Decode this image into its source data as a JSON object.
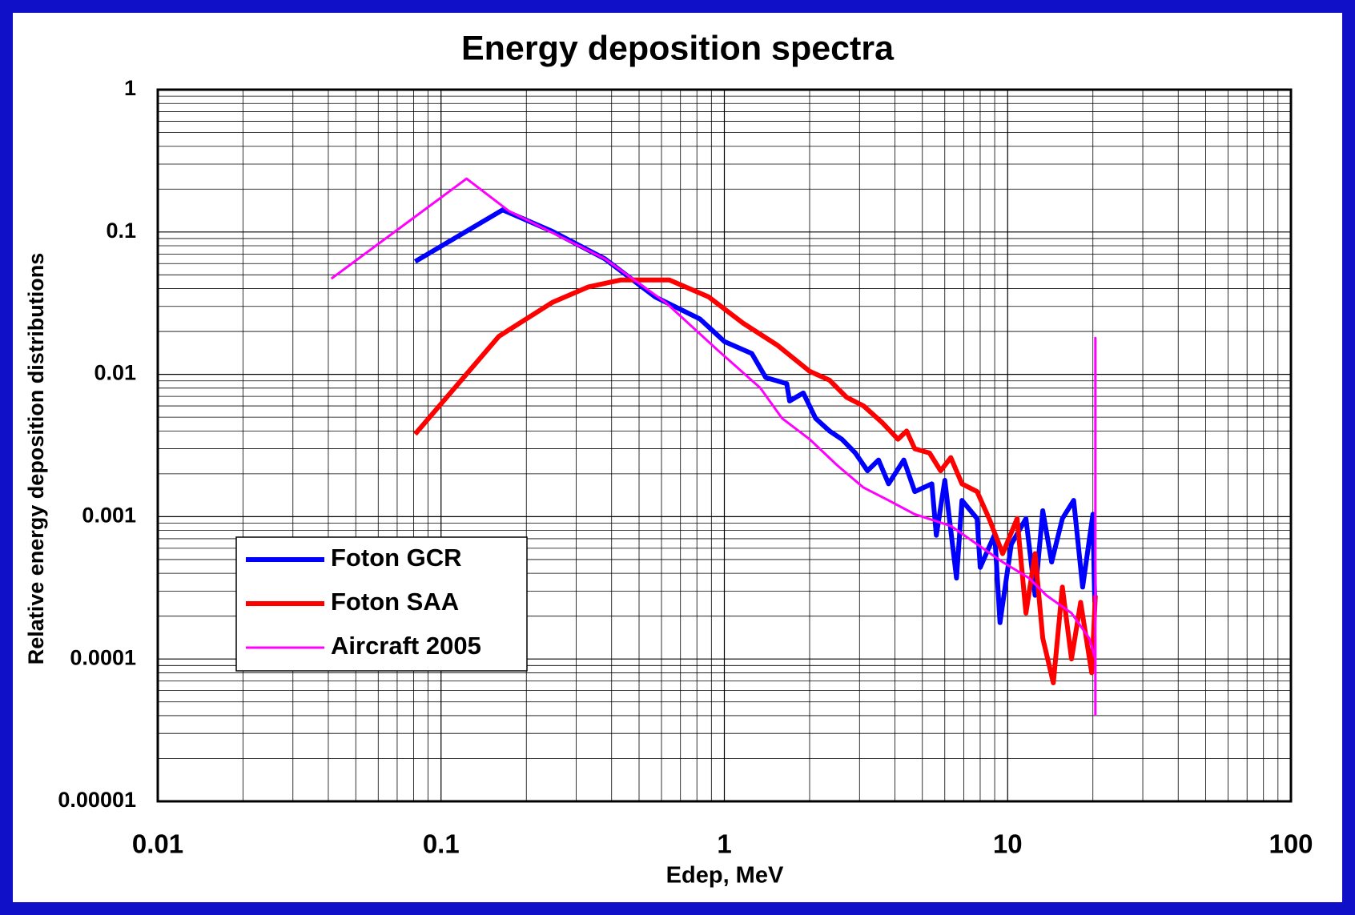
{
  "chart_data": {
    "type": "line",
    "title": "Energy deposition spectra",
    "x_label": "Edep, MeV",
    "y_label": "Relative energy deposition distributions",
    "xscale": "log",
    "yscale": "log",
    "grid": true,
    "legend": "lower left",
    "xlim": [
      0.01,
      100
    ],
    "xticks": [
      0.01,
      0.1,
      1,
      10,
      100
    ],
    "ylim": [
      1e-05,
      1
    ],
    "yticks": [
      1e-05,
      0.0001,
      0.001,
      0.01,
      0.1,
      1
    ],
    "series": [
      {
        "name": "Foton GCR",
        "color": "#0000ff",
        "width": 6,
        "x": [
          0.081,
          0.165,
          0.247,
          0.378,
          0.57,
          0.82,
          1.0,
          1.25,
          1.4,
          1.66,
          1.7,
          1.9,
          2.1,
          2.35,
          2.6,
          2.9,
          3.2,
          3.5,
          3.8,
          4.3,
          4.7,
          5.4,
          5.6,
          6.0,
          6.6,
          6.9,
          7.8,
          8.0,
          9.0,
          9.4,
          10.3,
          11.6,
          12.5,
          13.3,
          14.3,
          15.6,
          17.1,
          18.4,
          20,
          20.3
        ],
        "values": [
          0.062,
          0.143,
          0.101,
          0.065,
          0.035,
          0.0245,
          0.017,
          0.014,
          0.0095,
          0.0086,
          0.0065,
          0.0074,
          0.0049,
          0.004,
          0.0035,
          0.0028,
          0.0021,
          0.0025,
          0.0017,
          0.0025,
          0.0015,
          0.0017,
          0.00074,
          0.0018,
          0.00037,
          0.0013,
          0.00097,
          0.00044,
          0.00075,
          0.00018,
          0.00064,
          0.00097,
          0.00028,
          0.0011,
          0.00048,
          0.00097,
          0.0013,
          0.00032,
          0.00104,
          0.00025
        ]
      },
      {
        "name": "Foton SAA",
        "color": "#ff0000",
        "width": 6,
        "x": [
          0.081,
          0.16,
          0.247,
          0.33,
          0.43,
          0.64,
          0.88,
          1.16,
          1.54,
          2.0,
          2.35,
          2.7,
          3.1,
          3.6,
          4.1,
          4.4,
          4.7,
          5.3,
          5.8,
          6.3,
          6.9,
          7.8,
          8.6,
          9.6,
          10.8,
          11.6,
          12.5,
          13.3,
          14.5,
          15.6,
          16.8,
          18.1,
          19.8,
          20.4
        ],
        "values": [
          0.0038,
          0.0185,
          0.032,
          0.041,
          0.046,
          0.046,
          0.035,
          0.023,
          0.016,
          0.0105,
          0.0091,
          0.0069,
          0.006,
          0.0046,
          0.0035,
          0.004,
          0.003,
          0.0028,
          0.0021,
          0.0026,
          0.0017,
          0.0015,
          0.00097,
          0.00055,
          0.00097,
          0.00021,
          0.00055,
          0.00014,
          6.8e-05,
          0.00032,
          0.0001,
          0.00025,
          8e-05,
          0.00028
        ]
      },
      {
        "name": "Aircraft 2005",
        "color": "#ff00ff",
        "width": 3,
        "x": [
          0.041,
          0.123,
          0.174,
          0.378,
          0.62,
          0.94,
          1.34,
          1.6,
          2.0,
          2.5,
          3.1,
          3.8,
          4.7,
          6.3,
          7.8,
          9.6,
          11.9,
          13.7,
          16.8,
          19.4,
          20.4,
          20.4,
          20.4
        ],
        "values": [
          0.047,
          0.237,
          0.14,
          0.065,
          0.032,
          0.015,
          0.008,
          0.0049,
          0.0035,
          0.0023,
          0.0016,
          0.0013,
          0.00104,
          0.00086,
          0.00064,
          0.00048,
          0.00037,
          0.00028,
          0.00021,
          0.00014,
          0.0001,
          0.018,
          4e-05
        ]
      }
    ]
  }
}
